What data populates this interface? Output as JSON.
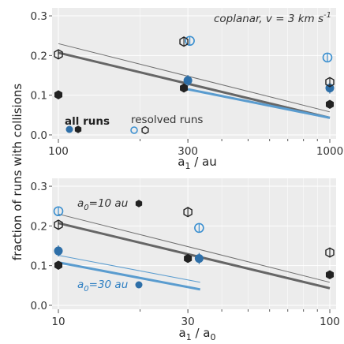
{
  "figure": {
    "ylabel": "fraction of runs with collisions"
  },
  "chart_data": [
    {
      "type": "scatter",
      "panel": "top",
      "title": "coplanar, v = 3 km s",
      "title_sup": "-1",
      "xlabel_main": "a",
      "xlabel_sub": "1",
      "xlabel_rest": " / au",
      "xscale": "log",
      "xlim": [
        100,
        1000
      ],
      "ylim": [
        -0.01,
        0.32
      ],
      "xticks": [
        100,
        300,
        1000
      ],
      "xticklabels": [
        "100",
        "300",
        "1000"
      ],
      "yticks": [
        0.0,
        0.1,
        0.2,
        0.3
      ],
      "yticklabels": [
        "0.0",
        "0.1",
        "0.2",
        "0.3"
      ],
      "grid": true,
      "legend": {
        "all_runs_label": "all runs",
        "resolved_label": "resolved runs"
      },
      "series": [
        {
          "role": "all runs (filled)",
          "color": "#2e6fa8",
          "x": [
            300,
            1000
          ],
          "y": [
            0.137,
            0.118
          ]
        },
        {
          "role": "all runs (filled)",
          "color": "#222222",
          "x": [
            100,
            290,
            1000
          ],
          "y": [
            0.101,
            0.118,
            0.077
          ]
        },
        {
          "role": "resolved runs (open)",
          "color": "#3a8fd0",
          "x": [
            305,
            980
          ],
          "y": [
            0.237,
            0.195
          ]
        },
        {
          "role": "resolved runs (open)",
          "color": "#222222",
          "x": [
            100,
            290,
            1000
          ],
          "y": [
            0.203,
            0.235,
            0.133
          ]
        }
      ],
      "lines": [
        {
          "color": "#666666",
          "width": 3,
          "x": [
            100,
            1000
          ],
          "y": [
            0.207,
            0.043
          ]
        },
        {
          "color": "#6f6f6f",
          "width": 1,
          "x": [
            100,
            1000
          ],
          "y": [
            0.23,
            0.058
          ]
        },
        {
          "color": "#5a9ccf",
          "width": 3,
          "x": [
            300,
            1000
          ],
          "y": [
            0.115,
            0.043
          ]
        }
      ]
    },
    {
      "type": "scatter",
      "panel": "bottom",
      "xlabel_main": "a",
      "xlabel_sub": "1",
      "xlabel_rest": " / a",
      "xlabel_sub2": "0",
      "xscale": "log",
      "xlim": [
        10,
        100
      ],
      "ylim": [
        -0.01,
        0.32
      ],
      "xticks": [
        10,
        30,
        100
      ],
      "xticklabels": [
        "10",
        "30",
        "100"
      ],
      "yticks": [
        0.0,
        0.1,
        0.2,
        0.3
      ],
      "yticklabels": [
        "0.0",
        "0.1",
        "0.2",
        "0.3"
      ],
      "grid": true,
      "annotations": {
        "a0_10": "a",
        "a0_10_sub": "0",
        "a0_10_rest": "=10 au",
        "a0_30": "a",
        "a0_30_sub": "0",
        "a0_30_rest": "=30 au"
      },
      "series": [
        {
          "role": "a0=10 au filled",
          "color": "#222222",
          "x": [
            10,
            30,
            100
          ],
          "y": [
            0.101,
            0.118,
            0.077
          ]
        },
        {
          "role": "a0=10 au open",
          "color": "#222222",
          "x": [
            10,
            30,
            100
          ],
          "y": [
            0.203,
            0.235,
            0.133
          ]
        },
        {
          "role": "a0=30 au filled",
          "color": "#2e6fa8",
          "x": [
            10,
            33
          ],
          "y": [
            0.137,
            0.118
          ]
        },
        {
          "role": "a0=30 au open",
          "color": "#3a8fd0",
          "x": [
            10,
            33
          ],
          "y": [
            0.237,
            0.195
          ]
        }
      ],
      "lines": [
        {
          "color": "#666666",
          "width": 3,
          "x": [
            10,
            100
          ],
          "y": [
            0.207,
            0.043
          ]
        },
        {
          "color": "#6f6f6f",
          "width": 1,
          "x": [
            10,
            100
          ],
          "y": [
            0.23,
            0.058
          ]
        },
        {
          "color": "#5a9ccf",
          "width": 3,
          "x": [
            10,
            33.3
          ],
          "y": [
            0.108,
            0.04
          ]
        },
        {
          "color": "#5a9ccf",
          "width": 1,
          "x": [
            10,
            33.3
          ],
          "y": [
            0.126,
            0.058
          ]
        }
      ]
    }
  ]
}
